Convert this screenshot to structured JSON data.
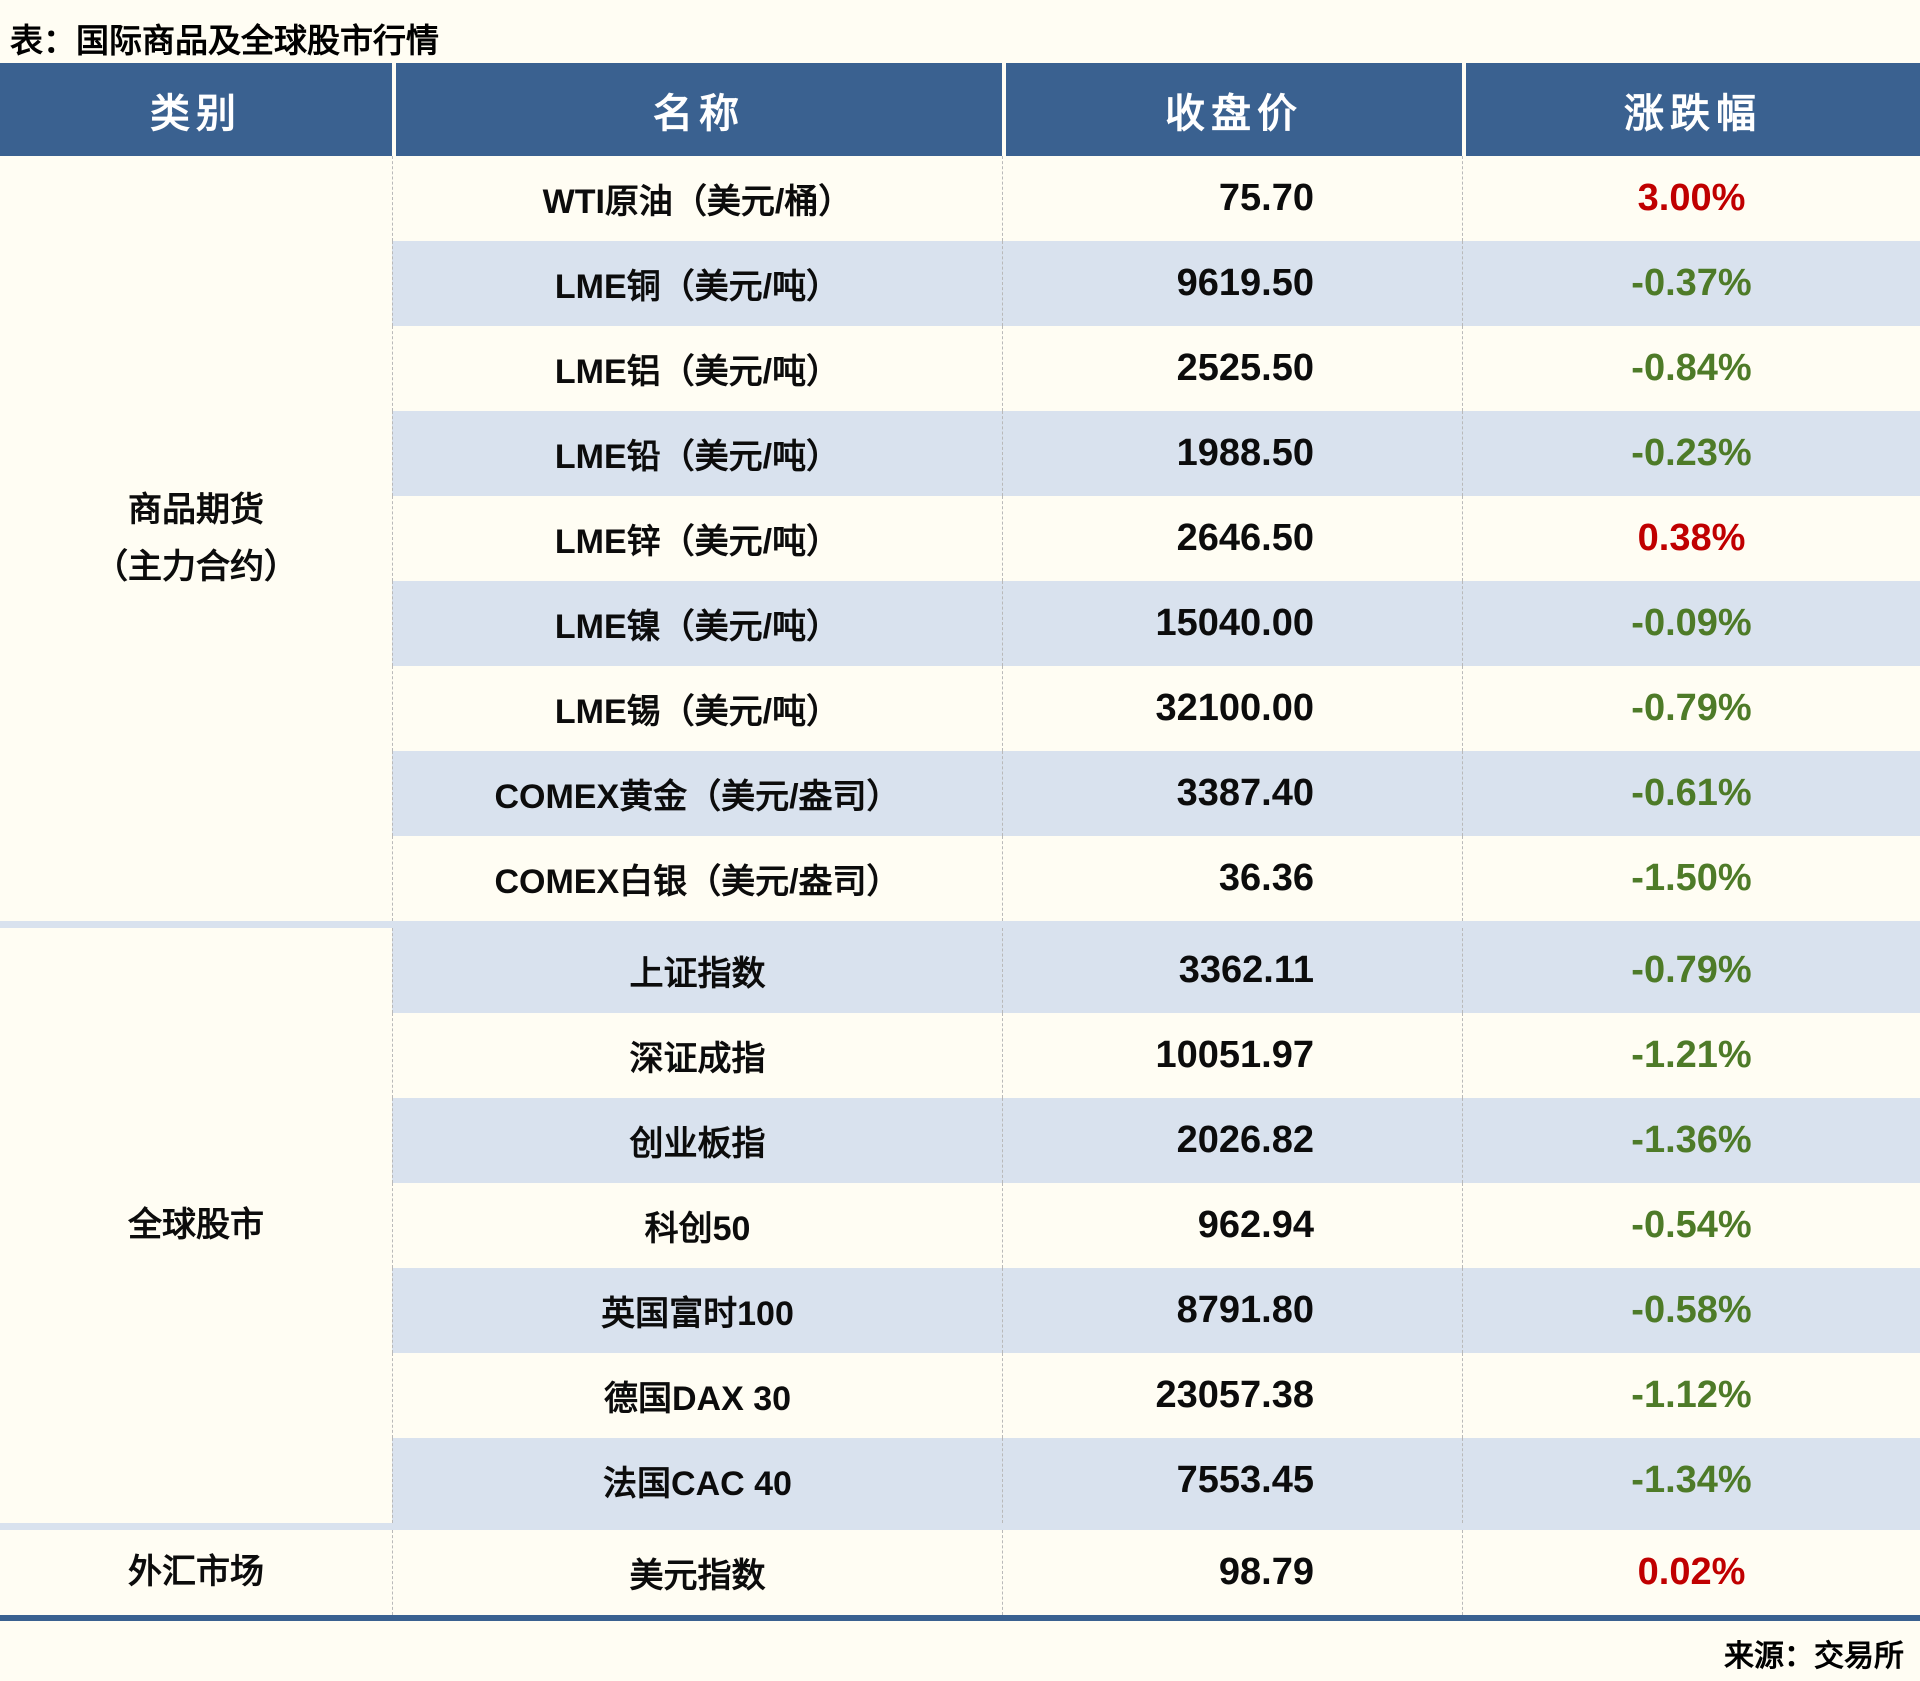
{
  "page": {
    "title": "表：国际商品及全球股市行情",
    "source_note": "来源：交易所"
  },
  "colors": {
    "header_bg": "#3a6190",
    "row_stripe": "#d9e2ee",
    "up_red": "#c00000",
    "down_green": "#4e7b28",
    "page_bg": "#fffdf3",
    "ink": "#0c0c0c"
  },
  "table": {
    "headers": [
      "类别",
      "名称",
      "收盘价",
      "涨跌幅"
    ],
    "groups": [
      {
        "category": "商品期货\n（主力合约）",
        "rows": [
          {
            "name": "WTI原油（美元/桶）",
            "close": "75.70",
            "change": "3.00%",
            "direction": "up"
          },
          {
            "name": "LME铜（美元/吨）",
            "close": "9619.50",
            "change": "-0.37%",
            "direction": "down"
          },
          {
            "name": "LME铝（美元/吨）",
            "close": "2525.50",
            "change": "-0.84%",
            "direction": "down"
          },
          {
            "name": "LME铅（美元/吨）",
            "close": "1988.50",
            "change": "-0.23%",
            "direction": "down"
          },
          {
            "name": "LME锌（美元/吨）",
            "close": "2646.50",
            "change": "0.38%",
            "direction": "up"
          },
          {
            "name": "LME镍（美元/吨）",
            "close": "15040.00",
            "change": "-0.09%",
            "direction": "down"
          },
          {
            "name": "LME锡（美元/吨）",
            "close": "32100.00",
            "change": "-0.79%",
            "direction": "down"
          },
          {
            "name": "COMEX黄金（美元/盎司）",
            "close": "3387.40",
            "change": "-0.61%",
            "direction": "down"
          },
          {
            "name": "COMEX白银（美元/盎司）",
            "close": "36.36",
            "change": "-1.50%",
            "direction": "down"
          }
        ]
      },
      {
        "category": "全球股市",
        "rows": [
          {
            "name": "上证指数",
            "close": "3362.11",
            "change": "-0.79%",
            "direction": "down"
          },
          {
            "name": "深证成指",
            "close": "10051.97",
            "change": "-1.21%",
            "direction": "down"
          },
          {
            "name": "创业板指",
            "close": "2026.82",
            "change": "-1.36%",
            "direction": "down"
          },
          {
            "name": "科创50",
            "close": "962.94",
            "change": "-0.54%",
            "direction": "down"
          },
          {
            "name": "英国富时100",
            "close": "8791.80",
            "change": "-0.58%",
            "direction": "down"
          },
          {
            "name": "德国DAX 30",
            "close": "23057.38",
            "change": "-1.12%",
            "direction": "down"
          },
          {
            "name": "法国CAC 40",
            "close": "7553.45",
            "change": "-1.34%",
            "direction": "down"
          }
        ]
      },
      {
        "category": "外汇市场",
        "rows": [
          {
            "name": "美元指数",
            "close": "98.79",
            "change": "0.02%",
            "direction": "up"
          }
        ]
      }
    ]
  },
  "chart_data": {
    "type": "table",
    "title": "表：国际商品及全球股市行情",
    "columns": [
      "类别",
      "名称",
      "收盘价",
      "涨跌幅"
    ],
    "rows": [
      [
        "商品期货（主力合约）",
        "WTI原油（美元/桶）",
        75.7,
        "3.00%"
      ],
      [
        "商品期货（主力合约）",
        "LME铜（美元/吨）",
        9619.5,
        "-0.37%"
      ],
      [
        "商品期货（主力合约）",
        "LME铝（美元/吨）",
        2525.5,
        "-0.84%"
      ],
      [
        "商品期货（主力合约）",
        "LME铅（美元/吨）",
        1988.5,
        "-0.23%"
      ],
      [
        "商品期货（主力合约）",
        "LME锌（美元/吨）",
        2646.5,
        "0.38%"
      ],
      [
        "商品期货（主力合约）",
        "LME镍（美元/吨）",
        15040.0,
        "-0.09%"
      ],
      [
        "商品期货（主力合约）",
        "LME锡（美元/吨）",
        32100.0,
        "-0.79%"
      ],
      [
        "商品期货（主力合约）",
        "COMEX黄金（美元/盎司）",
        3387.4,
        "-0.61%"
      ],
      [
        "商品期货（主力合约）",
        "COMEX白银（美元/盎司）",
        36.36,
        "-1.50%"
      ],
      [
        "全球股市",
        "上证指数",
        3362.11,
        "-0.79%"
      ],
      [
        "全球股市",
        "深证成指",
        10051.97,
        "-1.21%"
      ],
      [
        "全球股市",
        "创业板指",
        2026.82,
        "-1.36%"
      ],
      [
        "全球股市",
        "科创50",
        962.94,
        "-0.54%"
      ],
      [
        "全球股市",
        "英国富时100",
        8791.8,
        "-0.58%"
      ],
      [
        "全球股市",
        "德国DAX 30",
        23057.38,
        "-1.12%"
      ],
      [
        "全球股市",
        "法国CAC 40",
        7553.45,
        "-1.34%"
      ],
      [
        "外汇市场",
        "美元指数",
        98.79,
        "0.02%"
      ]
    ],
    "notes": "红色=上涨，绿色=下跌；行背景交替（白/浅蓝）",
    "source": "来源：交易所"
  }
}
